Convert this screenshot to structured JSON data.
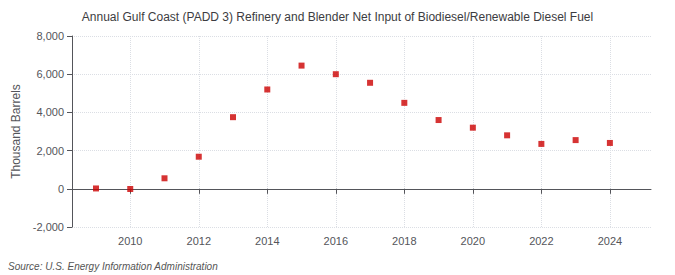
{
  "chart_data": {
    "type": "scatter",
    "title": "Annual Gulf Coast (PADD 3) Refinery and Blender Net Input of Biodiesel/Renewable Diesel Fuel",
    "ylabel": "Thousand Barrels",
    "annotations": [
      "Source: U.S. Energy Information Administration"
    ],
    "x": [
      2009,
      2010,
      2011,
      2012,
      2013,
      2014,
      2015,
      2016,
      2017,
      2018,
      2019,
      2020,
      2021,
      2022,
      2023,
      2024
    ],
    "values": [
      18,
      -10,
      550,
      1680,
      3750,
      5200,
      6450,
      6000,
      5550,
      4500,
      3600,
      3200,
      2800,
      2350,
      2550,
      2400
    ],
    "color": "#cc0000",
    "marker": "square",
    "xlim": [
      2008.3,
      2025.2
    ],
    "xticks": [
      2010,
      2012,
      2014,
      2016,
      2018,
      2020,
      2022,
      2024
    ],
    "ylim": [
      -2000,
      8000
    ],
    "yticks": [
      {
        "value": -2000,
        "label": "-2,000"
      },
      0,
      {
        "value": 2000,
        "label": "2,000"
      },
      {
        "value": 4000,
        "label": "4,000"
      },
      {
        "value": 6000,
        "label": "6,000"
      },
      {
        "value": 8000,
        "label": "8,000"
      }
    ],
    "grid": true
  }
}
